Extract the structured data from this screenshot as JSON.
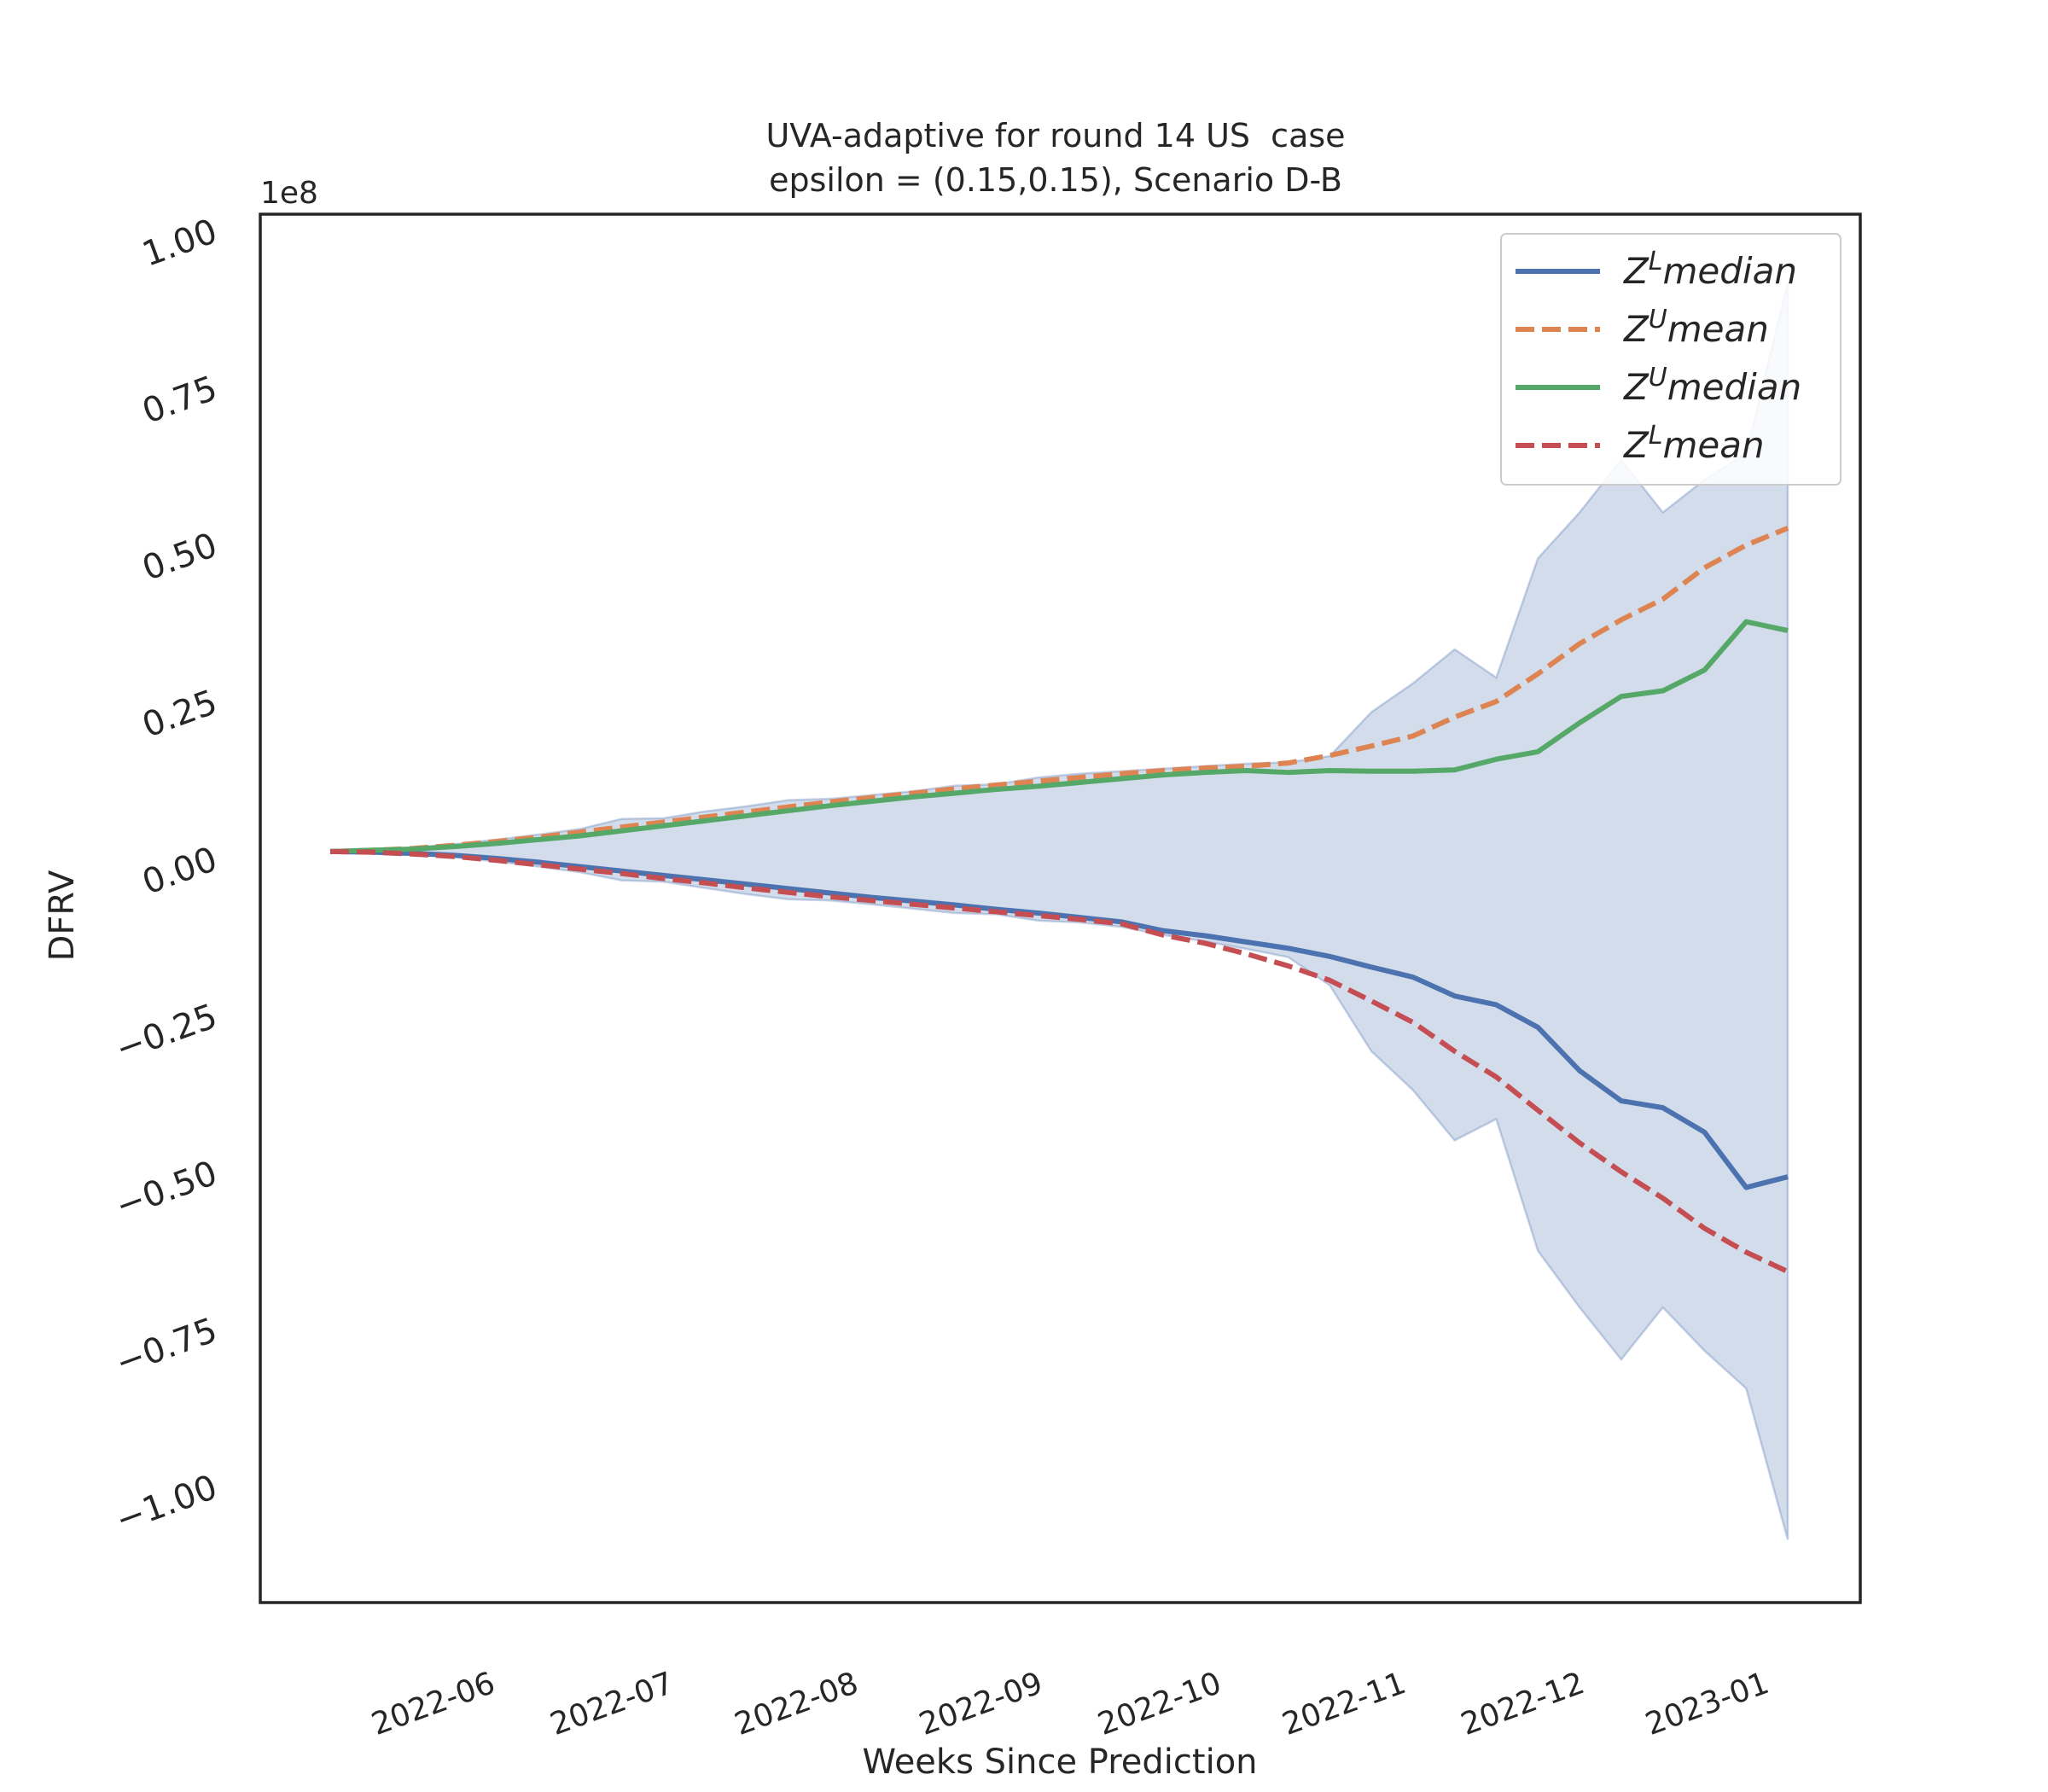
{
  "chart_data": {
    "type": "line",
    "title": [
      "UVA-adaptive for round 14 US  case",
      "epsilon = (0.15,0.15), Scenario D-B"
    ],
    "x_label": "Weeks Since Prediction",
    "y_label": "DFRV",
    "y_offset_label": "1e8",
    "x": [
      0,
      1,
      2,
      3,
      4,
      5,
      6,
      7,
      8,
      9,
      10,
      11,
      12,
      13,
      14,
      15,
      16,
      17,
      18,
      19,
      20,
      21,
      22,
      23,
      24,
      25,
      26,
      27,
      28,
      29,
      30,
      31,
      32,
      33,
      34,
      35
    ],
    "xlim": [
      -1.68,
      36.74
    ],
    "xticks": [
      {
        "value": 3.8,
        "label": "2022-06"
      },
      {
        "value": 8.09,
        "label": "2022-07"
      },
      {
        "value": 12.52,
        "label": "2022-08"
      },
      {
        "value": 16.95,
        "label": "2022-09"
      },
      {
        "value": 21.24,
        "label": "2022-10"
      },
      {
        "value": 25.67,
        "label": "2022-11"
      },
      {
        "value": 29.96,
        "label": "2022-12"
      },
      {
        "value": 34.39,
        "label": "2023-01"
      }
    ],
    "ylim": [
      -1.188,
      1.023
    ],
    "yticks": [
      {
        "value": 1,
        "label": "1.00"
      },
      {
        "value": 0.75,
        "label": "0.75"
      },
      {
        "value": 0.5,
        "label": "0.50"
      },
      {
        "value": 0.25,
        "label": "0.25"
      },
      {
        "value": 0,
        "label": "0.00"
      },
      {
        "value": -0.25,
        "label": "−0.25"
      },
      {
        "value": -0.5,
        "label": "−0.50"
      },
      {
        "value": -0.75,
        "label": "−0.75"
      },
      {
        "value": -1,
        "label": "−1.00"
      }
    ],
    "grid": false,
    "legend": "upper right",
    "band": {
      "color": "#4c72b0",
      "upper": [
        0.008,
        0.011,
        0.014,
        0.02,
        0.027,
        0.035,
        0.044,
        0.06,
        0.061,
        0.072,
        0.08,
        0.09,
        0.092,
        0.098,
        0.104,
        0.113,
        0.115,
        0.126,
        0.132,
        0.136,
        0.14,
        0.144,
        0.148,
        0.15,
        0.16,
        0.23,
        0.276,
        0.33,
        0.285,
        0.475,
        0.548,
        0.632,
        0.548,
        0.6,
        0.642,
        0.914
      ],
      "lower": [
        0.008,
        0.006,
        0.003,
        -0.001,
        -0.008,
        -0.016,
        -0.025,
        -0.038,
        -0.04,
        -0.05,
        -0.06,
        -0.068,
        -0.07,
        -0.076,
        -0.083,
        -0.09,
        -0.092,
        -0.102,
        -0.105,
        -0.112,
        -0.125,
        -0.135,
        -0.147,
        -0.16,
        -0.205,
        -0.31,
        -0.372,
        -0.452,
        -0.418,
        -0.628,
        -0.718,
        -0.801,
        -0.718,
        -0.787,
        -0.847,
        -1.088
      ]
    },
    "series": [
      {
        "name": "Z^Lmedian",
        "color": "#4c72b0",
        "style": "solid",
        "values": [
          0.008,
          0.007,
          0.005,
          0.002,
          -0.003,
          -0.009,
          -0.016,
          -0.023,
          -0.03,
          -0.037,
          -0.044,
          -0.051,
          -0.058,
          -0.065,
          -0.071,
          -0.077,
          -0.084,
          -0.09,
          -0.097,
          -0.104,
          -0.118,
          -0.126,
          -0.136,
          -0.146,
          -0.159,
          -0.176,
          -0.192,
          -0.222,
          -0.236,
          -0.272,
          -0.341,
          -0.389,
          -0.4,
          -0.439,
          -0.527,
          -0.51
        ]
      },
      {
        "name": "Z^Umean",
        "color": "#dd8452",
        "style": "dashed",
        "values": [
          0.008,
          0.01,
          0.013,
          0.018,
          0.024,
          0.031,
          0.039,
          0.047,
          0.055,
          0.063,
          0.071,
          0.079,
          0.087,
          0.094,
          0.101,
          0.108,
          0.114,
          0.12,
          0.126,
          0.132,
          0.137,
          0.141,
          0.144,
          0.149,
          0.161,
          0.176,
          0.192,
          0.222,
          0.247,
          0.291,
          0.339,
          0.377,
          0.41,
          0.46,
          0.496,
          0.523
        ]
      },
      {
        "name": "Z^Umedian",
        "color": "#55a868",
        "style": "solid",
        "values": [
          0.008,
          0.01,
          0.012,
          0.016,
          0.021,
          0.027,
          0.033,
          0.041,
          0.049,
          0.057,
          0.065,
          0.073,
          0.081,
          0.088,
          0.095,
          0.101,
          0.107,
          0.112,
          0.118,
          0.124,
          0.13,
          0.134,
          0.137,
          0.134,
          0.137,
          0.136,
          0.136,
          0.138,
          0.155,
          0.167,
          0.213,
          0.255,
          0.264,
          0.297,
          0.374,
          0.36
        ]
      },
      {
        "name": "Z^Lmean",
        "color": "#c44e52",
        "style": "dashed",
        "values": [
          0.008,
          0.007,
          0.004,
          0.0,
          -0.006,
          -0.013,
          -0.02,
          -0.027,
          -0.035,
          -0.042,
          -0.05,
          -0.057,
          -0.064,
          -0.07,
          -0.076,
          -0.082,
          -0.088,
          -0.094,
          -0.1,
          -0.107,
          -0.125,
          -0.138,
          -0.155,
          -0.174,
          -0.197,
          -0.23,
          -0.264,
          -0.31,
          -0.351,
          -0.404,
          -0.456,
          -0.502,
          -0.544,
          -0.592,
          -0.63,
          -0.661
        ]
      }
    ]
  }
}
